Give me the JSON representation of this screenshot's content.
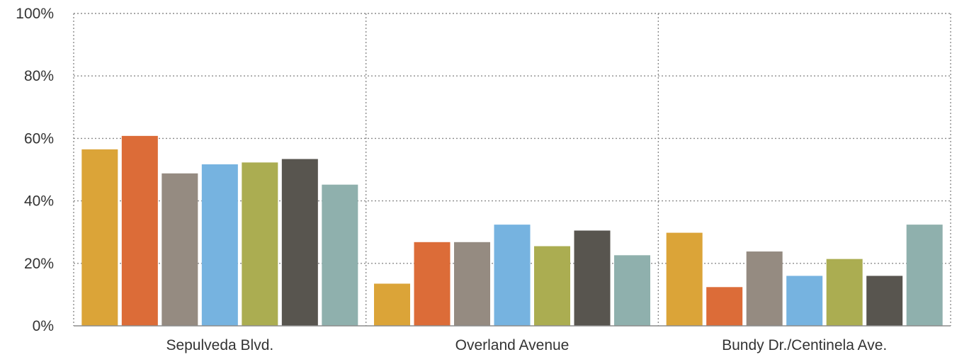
{
  "chart_data": {
    "type": "bar",
    "categories": [
      "Sepulveda Blvd.",
      "Overland Avenue",
      "Bundy Dr./Centinela Ave."
    ],
    "ylim": [
      0,
      100
    ],
    "yticks": [
      0,
      20,
      40,
      60,
      80,
      100
    ],
    "ytick_labels": [
      "0%",
      "20%",
      "40%",
      "60%",
      "80%",
      "100%"
    ],
    "grid": true,
    "legend": "none",
    "series": [
      {
        "color": "#dba438",
        "values": [
          56.5,
          13.5,
          29.8
        ]
      },
      {
        "color": "#dc6c38",
        "values": [
          60.8,
          26.8,
          12.4
        ]
      },
      {
        "color": "#958b81",
        "values": [
          48.8,
          26.8,
          23.8
        ]
      },
      {
        "color": "#76b3e0",
        "values": [
          51.7,
          32.4,
          16.0
        ]
      },
      {
        "color": "#abad51",
        "values": [
          52.3,
          25.5,
          21.4
        ]
      },
      {
        "color": "#58554f",
        "values": [
          53.4,
          30.5,
          16.0
        ]
      },
      {
        "color": "#8fb0ad",
        "values": [
          45.2,
          22.6,
          32.4
        ]
      }
    ]
  }
}
